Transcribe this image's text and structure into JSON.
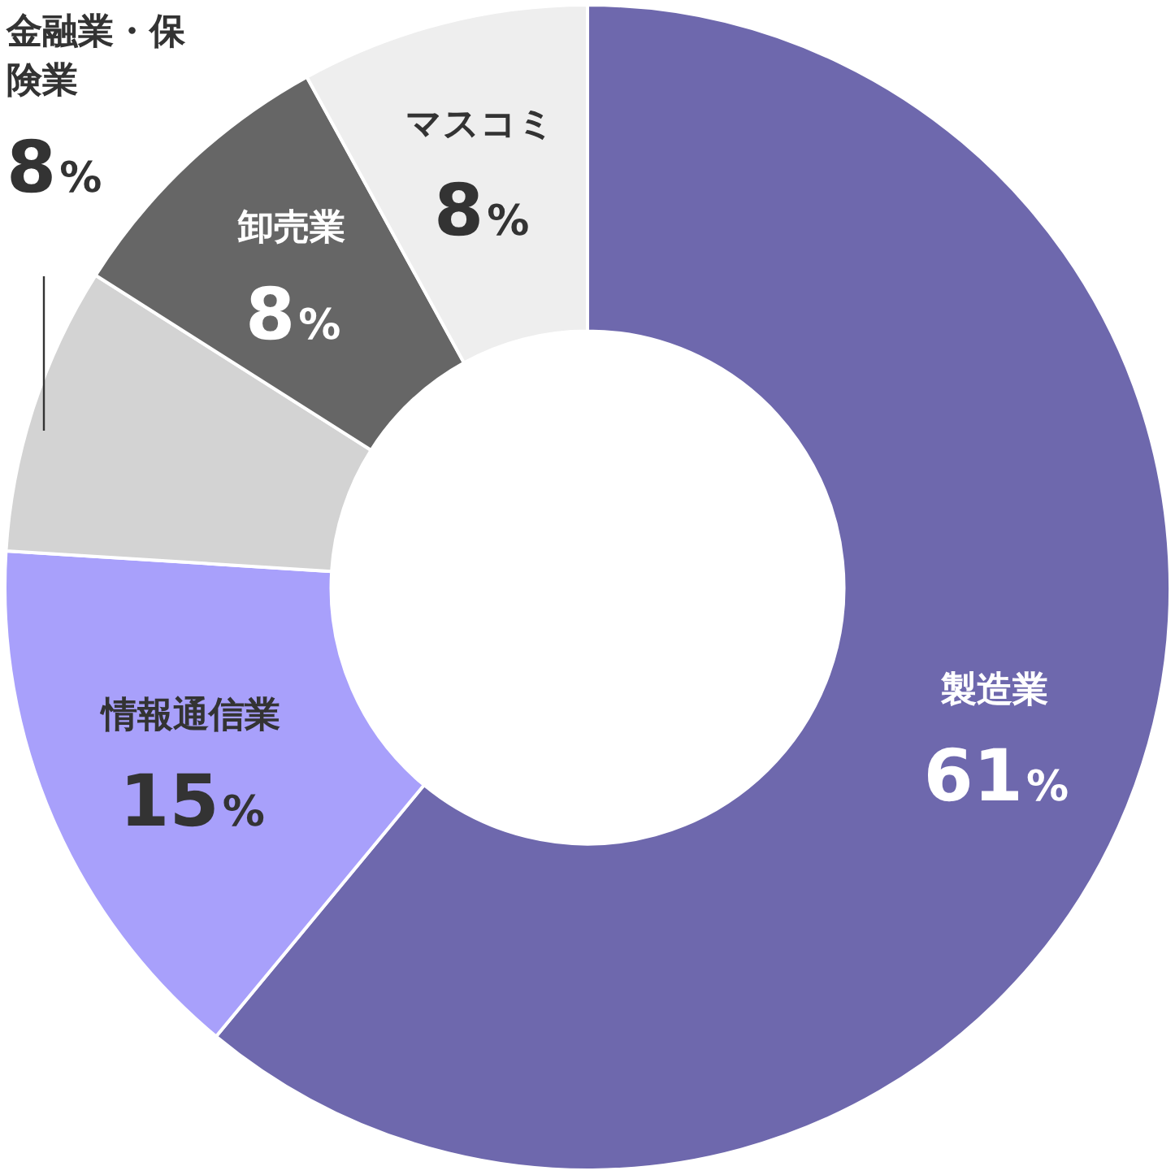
{
  "chart_data": {
    "type": "donut",
    "categories": [
      "製造業",
      "情報通信業",
      "金融業・保険業",
      "卸売業",
      "マスコミ"
    ],
    "values": [
      61,
      15,
      8,
      8,
      8
    ],
    "colors": [
      "#6e68ad",
      "#a8a0fb",
      "#d3d3d3",
      "#666666",
      "#eeeeee"
    ],
    "value_labels": [
      "61%",
      "15%",
      "8%",
      "8%",
      "8%"
    ],
    "legend": false
  }
}
